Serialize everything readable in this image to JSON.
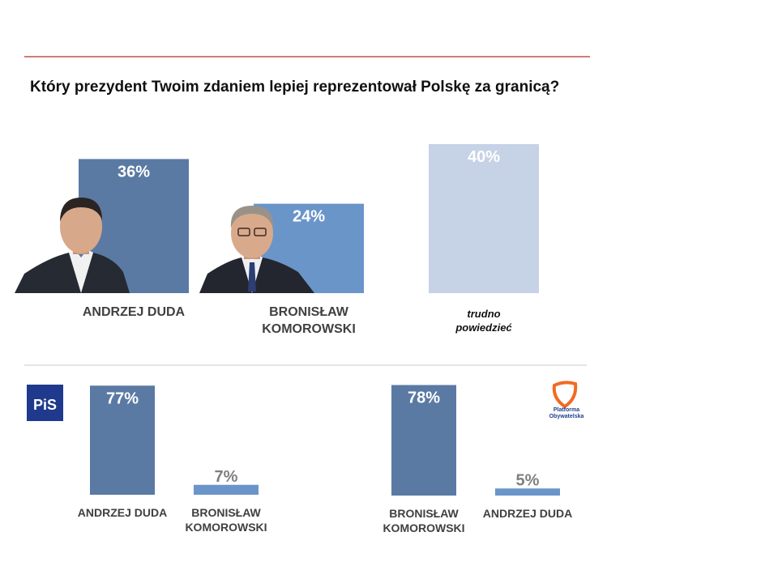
{
  "logos": {
    "pis": "PiS",
    "po": "Platforma Obywatelska"
  },
  "chart_data": [
    {
      "type": "bar",
      "title": "Który prezydent Twoim zdaniem lepiej reprezentował Polskę za granicą?",
      "categories": [
        "ANDRZEJ DUDA",
        "BRONISŁAW KOMOROWSKI",
        "trudno powiedzieć"
      ],
      "values": [
        36,
        24,
        40
      ],
      "value_labels": [
        "36%",
        "24%",
        "40%"
      ],
      "colors": [
        "#5a7aa4",
        "#6a95c9",
        "#c6d2e6"
      ]
    },
    {
      "type": "bar",
      "categories": [
        "ANDRZEJ DUDA",
        "BRONISŁAW KOMOROWSKI"
      ],
      "values": [
        77,
        7
      ],
      "value_labels": [
        "77%",
        "7%"
      ],
      "colors": [
        "#5a7aa4",
        "#6a95c9"
      ]
    },
    {
      "type": "bar",
      "categories": [
        "BRONISŁAW KOMOROWSKI",
        "ANDRZEJ DUDA"
      ],
      "values": [
        78,
        5
      ],
      "value_labels": [
        "78%",
        "5%"
      ],
      "colors": [
        "#5a7aa4",
        "#6a95c9"
      ]
    }
  ]
}
